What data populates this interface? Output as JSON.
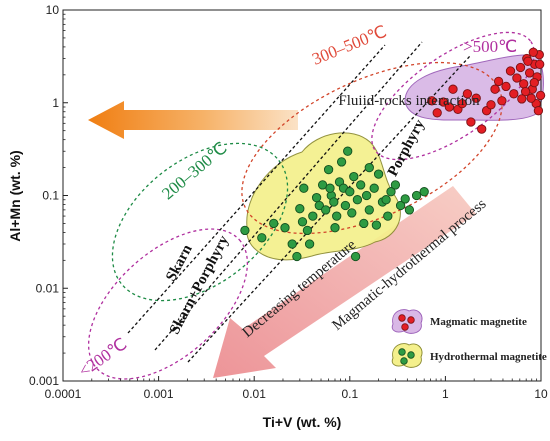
{
  "chart_data": {
    "type": "scatter",
    "xlabel": "Ti+V (wt. %)",
    "ylabel": "Al+Mn (wt. %)",
    "x_scale": "log",
    "y_scale": "log",
    "xlim": [
      0.0001,
      10
    ],
    "ylim": [
      0.001,
      10
    ],
    "x_ticks": [
      "0.0001",
      "0.001",
      "0.01",
      "0.1",
      "1",
      "10"
    ],
    "y_ticks": [
      "0.001",
      "0.01",
      "0.1",
      "1",
      "10"
    ],
    "grid": false,
    "legend_position": "bottom-right",
    "series": [
      {
        "name": "Magmatic magnetite",
        "color": "#e31e24",
        "field_color": "#d9b8e6",
        "points": [
          [
            0.72,
            1.05
          ],
          [
            0.82,
            0.78
          ],
          [
            0.95,
            1.02
          ],
          [
            1.1,
            0.9
          ],
          [
            1.2,
            1.4
          ],
          [
            1.35,
            0.85
          ],
          [
            1.5,
            0.98
          ],
          [
            1.7,
            1.25
          ],
          [
            1.85,
            0.62
          ],
          [
            2.1,
            1.12
          ],
          [
            2.4,
            0.52
          ],
          [
            2.7,
            0.82
          ],
          [
            3.0,
            0.95
          ],
          [
            3.3,
            1.4
          ],
          [
            3.6,
            1.7
          ],
          [
            3.9,
            1.05
          ],
          [
            4.3,
            1.5
          ],
          [
            4.8,
            2.2
          ],
          [
            5.2,
            1.25
          ],
          [
            5.6,
            1.85
          ],
          [
            6.1,
            2.4
          ],
          [
            6.6,
            1.6
          ],
          [
            7.1,
            3.0
          ],
          [
            7.6,
            2.1
          ],
          [
            8.1,
            1.4
          ],
          [
            8.6,
            2.6
          ],
          [
            9.1,
            1.9
          ],
          [
            9.6,
            3.3
          ],
          [
            9.9,
            1.2
          ],
          [
            8.9,
            0.98
          ],
          [
            7.9,
            1.12
          ],
          [
            6.9,
            1.32
          ],
          [
            9.4,
            0.82
          ],
          [
            8.3,
            3.5
          ],
          [
            7.3,
            2.8
          ],
          [
            6.3,
            1.1
          ],
          [
            9.7,
            2.6
          ],
          [
            8.5,
            1.65
          ]
        ]
      },
      {
        "name": "Hydrothermal magnetite",
        "color": "#2e9b43",
        "field_color": "#f4f08c",
        "points": [
          [
            0.008,
            0.042
          ],
          [
            0.012,
            0.035
          ],
          [
            0.016,
            0.05
          ],
          [
            0.021,
            0.045
          ],
          [
            0.025,
            0.03
          ],
          [
            0.03,
            0.072
          ],
          [
            0.032,
            0.052
          ],
          [
            0.036,
            0.042
          ],
          [
            0.041,
            0.06
          ],
          [
            0.045,
            0.095
          ],
          [
            0.048,
            0.078
          ],
          [
            0.052,
            0.13
          ],
          [
            0.056,
            0.07
          ],
          [
            0.06,
            0.19
          ],
          [
            0.064,
            0.1
          ],
          [
            0.068,
            0.085
          ],
          [
            0.073,
            0.06
          ],
          [
            0.078,
            0.14
          ],
          [
            0.082,
            0.23
          ],
          [
            0.086,
            0.12
          ],
          [
            0.09,
            0.078
          ],
          [
            0.095,
            0.3
          ],
          [
            0.1,
            0.11
          ],
          [
            0.105,
            0.065
          ],
          [
            0.11,
            0.16
          ],
          [
            0.12,
            0.09
          ],
          [
            0.13,
            0.13
          ],
          [
            0.14,
            0.05
          ],
          [
            0.15,
            0.1
          ],
          [
            0.16,
            0.07
          ],
          [
            0.18,
            0.12
          ],
          [
            0.2,
            0.17
          ],
          [
            0.22,
            0.085
          ],
          [
            0.25,
            0.06
          ],
          [
            0.27,
            0.11
          ],
          [
            0.3,
            0.13
          ],
          [
            0.34,
            0.078
          ],
          [
            0.38,
            0.092
          ],
          [
            0.42,
            0.07
          ],
          [
            0.5,
            0.1
          ],
          [
            0.6,
            0.11
          ],
          [
            0.028,
            0.022
          ],
          [
            0.038,
            0.03
          ],
          [
            0.115,
            0.022
          ],
          [
            0.19,
            0.048
          ],
          [
            0.07,
            0.045
          ],
          [
            0.16,
            0.2
          ],
          [
            0.062,
            0.12
          ],
          [
            0.24,
            0.09
          ],
          [
            0.033,
            0.12
          ]
        ]
      }
    ],
    "annotations": {
      "fluid_rocks": "Fluiid-rocks interaction",
      "temp_300_500": "300–500℃",
      "temp_gt_500": ">500℃",
      "temp_200_300": "200–300℃",
      "temp_lt_200": "<200℃",
      "porphyry": "Porphyry",
      "skarn": "Skarn",
      "skarn_porphyry": "Skarn+Porphyry",
      "decreasing_temp": "Decreasing temperature",
      "magmatic_process": "Magmatic-hydrothermal process"
    }
  }
}
